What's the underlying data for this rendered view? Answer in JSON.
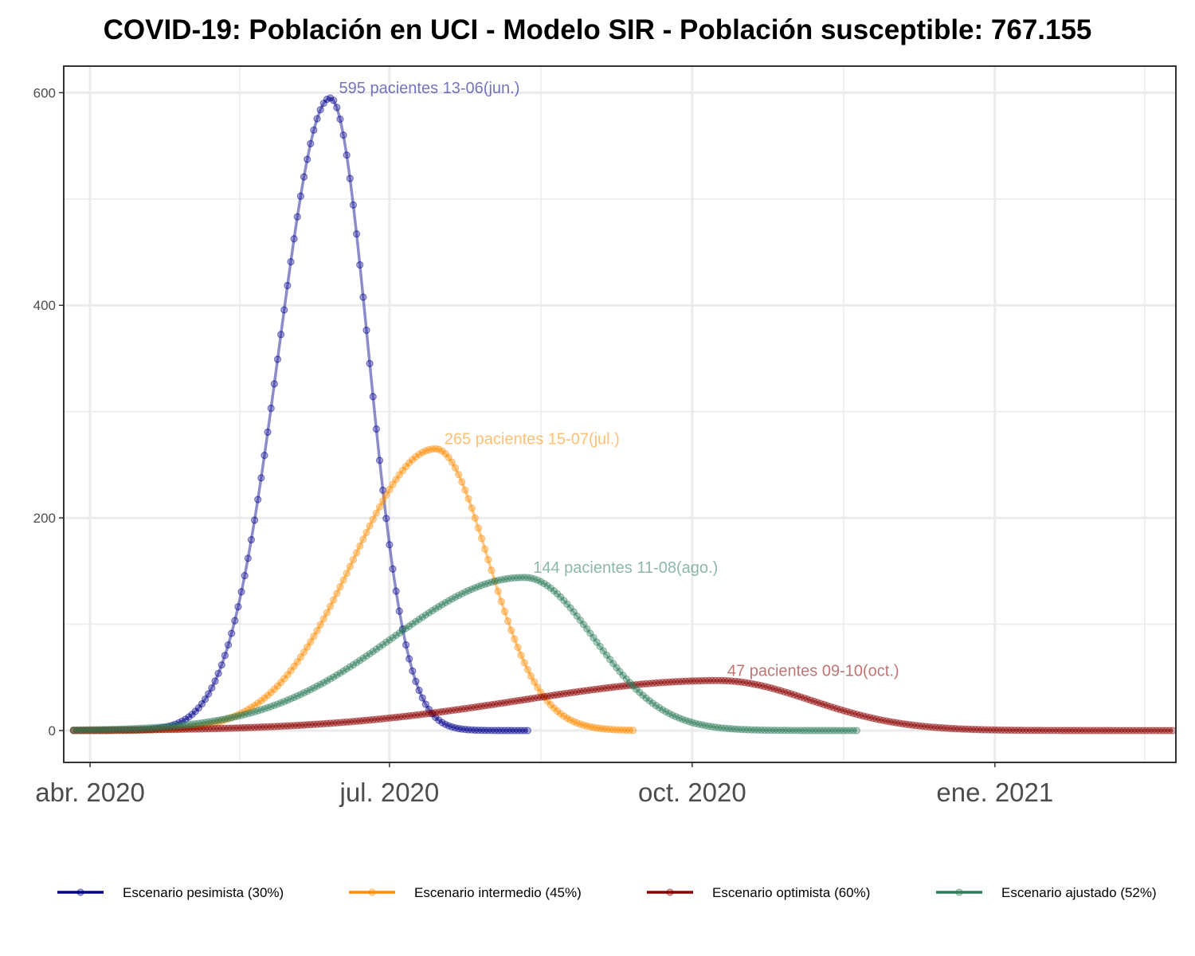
{
  "chart_data": {
    "type": "line",
    "title": "COVID-19: Población en UCI - Modelo SIR - Población susceptible: 767.155",
    "xlabel": "",
    "ylabel": "",
    "x_range": [
      "2020-03-24",
      "2021-02-25"
    ],
    "ylim": [
      -30,
      625
    ],
    "y_ticks": [
      0,
      200,
      400,
      600
    ],
    "x_ticks": [
      {
        "date": "2020-04-01",
        "label": "abr. 2020"
      },
      {
        "date": "2020-07-01",
        "label": "jul. 2020"
      },
      {
        "date": "2020-10-01",
        "label": "oct. 2020"
      },
      {
        "date": "2021-01-01",
        "label": "ene. 2021"
      }
    ],
    "grid": true,
    "legend_position": "bottom",
    "series": [
      {
        "name": "Escenario pesimista (30%)",
        "color": "#00008B",
        "start": "2020-03-27",
        "end": "2020-08-12",
        "peak_date": "2020-06-13",
        "peak_value": 595,
        "rise_width_days": 15.5,
        "fall_width_days": 11.5,
        "label": "595 pacientes 13-06(jun.)"
      },
      {
        "name": "Escenario intermedio (45%)",
        "color": "#FF8C00",
        "start": "2020-03-27",
        "end": "2020-09-13",
        "peak_date": "2020-07-15",
        "peak_value": 265,
        "rise_width_days": 25,
        "fall_width_days": 16,
        "label": "265 pacientes 15-07(jul.)"
      },
      {
        "name": "Escenario optimista (60%)",
        "color": "#8B0000",
        "start": "2020-03-27",
        "end": "2021-02-24",
        "peak_date": "2020-10-09",
        "peak_value": 47,
        "rise_width_days": 60,
        "fall_width_days": 28,
        "label": "47 pacientes 09-10(oct.)"
      },
      {
        "name": "Escenario ajustado (52%)",
        "color": "#2E7D5B",
        "start": "2020-03-27",
        "end": "2020-11-20",
        "peak_date": "2020-08-11",
        "peak_value": 144,
        "rise_width_days": 40,
        "fall_width_days": 21,
        "label": "144 pacientes 11-08(ago.)"
      }
    ]
  }
}
